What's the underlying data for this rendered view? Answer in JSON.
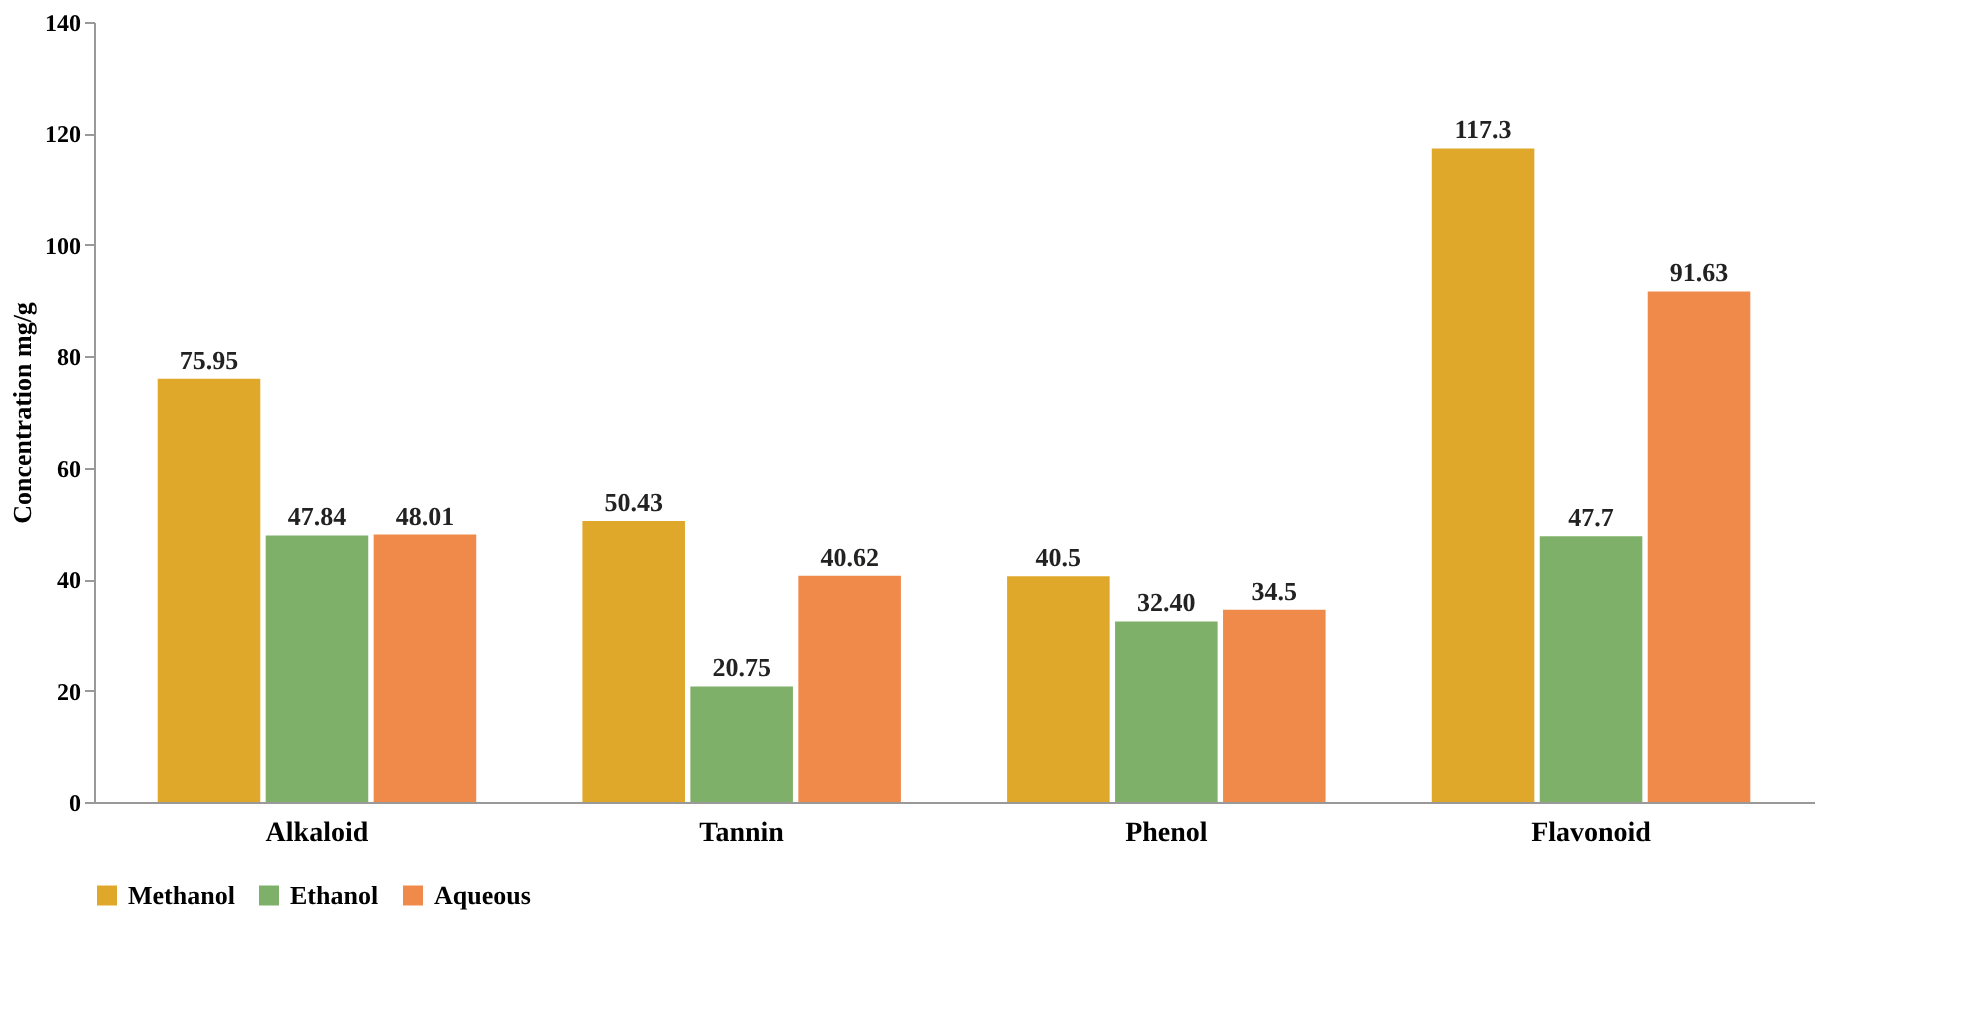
{
  "chart_data": {
    "type": "bar",
    "ylabel": "Concentration mg/g",
    "categories": [
      "Alkaloid",
      "Tannin",
      "Phenol",
      "Flavonoid"
    ],
    "series": [
      {
        "name": "Methanol",
        "color": "#e0a82a",
        "values": [
          75.95,
          50.43,
          40.5,
          117.3
        ]
      },
      {
        "name": "Ethanol",
        "color": "#7fb069",
        "values": [
          47.84,
          20.75,
          32.4,
          47.7
        ],
        "value_labels": [
          "47.84",
          "20.75",
          "32.40",
          "47.7"
        ]
      },
      {
        "name": "Aqueous",
        "color": "#f08a4b",
        "values": [
          48.01,
          40.62,
          34.5,
          91.63
        ]
      }
    ],
    "ylim": [
      0,
      140
    ],
    "yticks": [
      0,
      20,
      40,
      60,
      80,
      100,
      120,
      140
    ],
    "data_labels": true,
    "legend": "bottom",
    "grid": false
  }
}
